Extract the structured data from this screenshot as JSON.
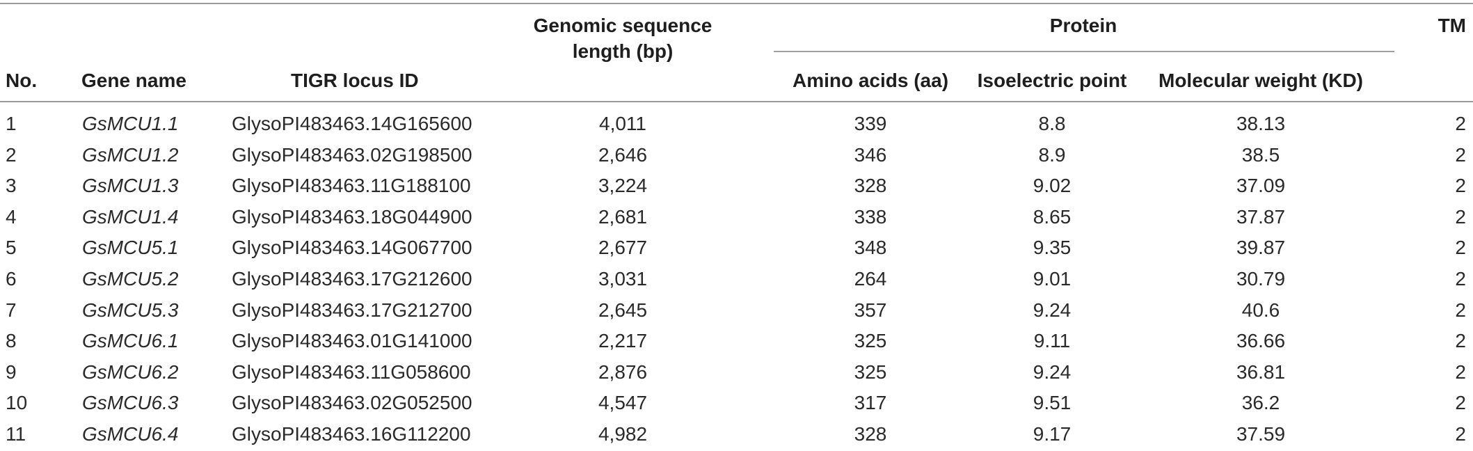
{
  "table": {
    "headers": {
      "no": "No.",
      "gene_name": "Gene name",
      "tigr_locus_id": "TIGR locus ID",
      "genomic_length_line1": "Genomic sequence",
      "genomic_length_line2": "length (bp)",
      "protein_group": "Protein",
      "amino_acids": "Amino acids (aa)",
      "isoelectric_point": "Isoelectric point",
      "molecular_weight": "Molecular weight (KD)",
      "tm": "TM"
    },
    "rows": [
      {
        "no": "1",
        "gene": "GsMCU1.1",
        "locus": "GlysoPI483463.14G165600",
        "length": "4,011",
        "aa": "339",
        "pi": "8.8",
        "mw": "38.13",
        "tm": "2"
      },
      {
        "no": "2",
        "gene": "GsMCU1.2",
        "locus": "GlysoPI483463.02G198500",
        "length": "2,646",
        "aa": "346",
        "pi": "8.9",
        "mw": "38.5",
        "tm": "2"
      },
      {
        "no": "3",
        "gene": "GsMCU1.3",
        "locus": "GlysoPI483463.11G188100",
        "length": "3,224",
        "aa": "328",
        "pi": "9.02",
        "mw": "37.09",
        "tm": "2"
      },
      {
        "no": "4",
        "gene": "GsMCU1.4",
        "locus": "GlysoPI483463.18G044900",
        "length": "2,681",
        "aa": "338",
        "pi": "8.65",
        "mw": "37.87",
        "tm": "2"
      },
      {
        "no": "5",
        "gene": "GsMCU5.1",
        "locus": "GlysoPI483463.14G067700",
        "length": "2,677",
        "aa": "348",
        "pi": "9.35",
        "mw": "39.87",
        "tm": "2"
      },
      {
        "no": "6",
        "gene": "GsMCU5.2",
        "locus": "GlysoPI483463.17G212600",
        "length": "3,031",
        "aa": "264",
        "pi": "9.01",
        "mw": "30.79",
        "tm": "2"
      },
      {
        "no": "7",
        "gene": "GsMCU5.3",
        "locus": "GlysoPI483463.17G212700",
        "length": "2,645",
        "aa": "357",
        "pi": "9.24",
        "mw": "40.6",
        "tm": "2"
      },
      {
        "no": "8",
        "gene": "GsMCU6.1",
        "locus": "GlysoPI483463.01G141000",
        "length": "2,217",
        "aa": "325",
        "pi": "9.11",
        "mw": "36.66",
        "tm": "2"
      },
      {
        "no": "9",
        "gene": "GsMCU6.2",
        "locus": "GlysoPI483463.11G058600",
        "length": "2,876",
        "aa": "325",
        "pi": "9.24",
        "mw": "36.81",
        "tm": "2"
      },
      {
        "no": "10",
        "gene": "GsMCU6.3",
        "locus": "GlysoPI483463.02G052500",
        "length": "4,547",
        "aa": "317",
        "pi": "9.51",
        "mw": "36.2",
        "tm": "2"
      },
      {
        "no": "11",
        "gene": "GsMCU6.4",
        "locus": "GlysoPI483463.16G112200",
        "length": "4,982",
        "aa": "328",
        "pi": "9.17",
        "mw": "37.59",
        "tm": "2"
      }
    ]
  }
}
